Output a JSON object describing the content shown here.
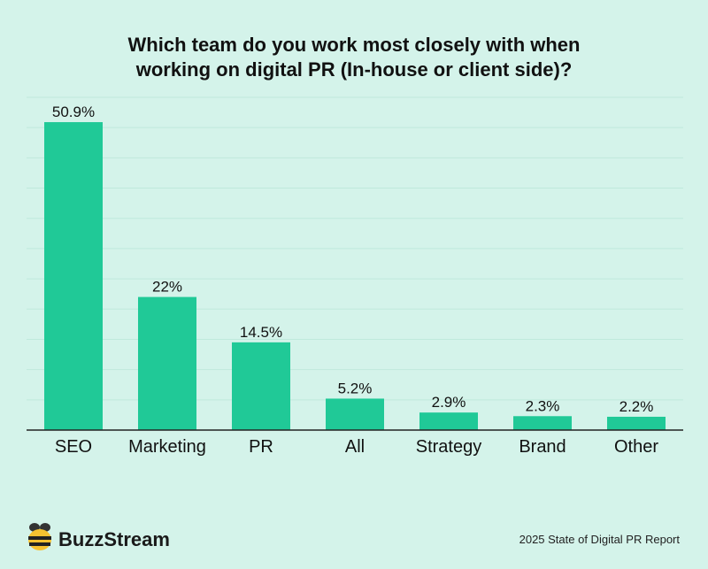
{
  "chart_data": {
    "type": "bar",
    "title_lines": [
      "Which team do you work most closely with when",
      "working on digital PR (In-house or client side)?"
    ],
    "categories": [
      "SEO",
      "Marketing",
      "PR",
      "All",
      "Strategy",
      "Brand",
      "Other"
    ],
    "values": [
      50.9,
      22,
      14.5,
      5.2,
      2.9,
      2.3,
      2.2
    ],
    "value_labels": [
      "50.9%",
      "22%",
      "14.5%",
      "5.2%",
      "2.9%",
      "2.3%",
      "2.2%"
    ],
    "unit": "%",
    "ylim": [
      0,
      55
    ],
    "grid": true,
    "bar_color": "#20c997",
    "grid_color": "#bfe9dc"
  },
  "footer": {
    "brand": "BuzzStream",
    "report": "2025 State of Digital PR Report"
  },
  "icons": {
    "logo": "bee-icon"
  }
}
